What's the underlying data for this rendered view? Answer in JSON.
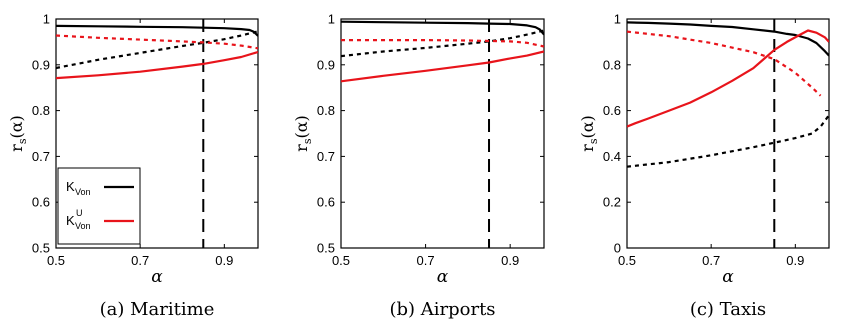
{
  "chart_data": [
    {
      "type": "line",
      "caption": "(a) Maritime",
      "xlabel": "α",
      "ylabel": "r_s(α)",
      "xlim": [
        0.5,
        0.98
      ],
      "ylim": [
        0.5,
        1.0
      ],
      "xticks": [
        "0.5",
        "0.7",
        "0.9"
      ],
      "xtick_values": [
        0.5,
        0.7,
        0.9
      ],
      "yticks": [
        "0.5",
        "0.6",
        "0.7",
        "0.8",
        "0.9",
        "1"
      ],
      "ytick_values": [
        0.5,
        0.6,
        0.7,
        0.8,
        0.9,
        1.0
      ],
      "vline": 0.85,
      "legend": {
        "location": "bottom-left",
        "entries": [
          {
            "label": "K",
            "sub": "Von",
            "sup": "",
            "color": "#000000"
          },
          {
            "label": "K",
            "sub": "Von",
            "sup": "U",
            "color": "#e8141b"
          }
        ]
      },
      "series": [
        {
          "color": "#000000",
          "dash": "solid",
          "x": [
            0.5,
            0.6,
            0.7,
            0.8,
            0.85,
            0.9,
            0.94,
            0.96,
            0.97,
            0.98
          ],
          "y": [
            0.985,
            0.984,
            0.983,
            0.982,
            0.981,
            0.98,
            0.978,
            0.976,
            0.972,
            0.963
          ]
        },
        {
          "color": "#e8141b",
          "dash": "solid",
          "x": [
            0.5,
            0.6,
            0.7,
            0.8,
            0.85,
            0.9,
            0.94,
            0.98
          ],
          "y": [
            0.871,
            0.877,
            0.885,
            0.896,
            0.902,
            0.91,
            0.917,
            0.928
          ]
        },
        {
          "color": "#000000",
          "dash": "dot",
          "x": [
            0.5,
            0.6,
            0.7,
            0.8,
            0.85,
            0.9,
            0.94,
            0.98
          ],
          "y": [
            0.893,
            0.911,
            0.926,
            0.941,
            0.948,
            0.956,
            0.964,
            0.973
          ]
        },
        {
          "color": "#e8141b",
          "dash": "dot",
          "x": [
            0.5,
            0.6,
            0.7,
            0.8,
            0.85,
            0.9,
            0.94,
            0.98
          ],
          "y": [
            0.964,
            0.959,
            0.955,
            0.951,
            0.949,
            0.946,
            0.942,
            0.936
          ]
        }
      ]
    },
    {
      "type": "line",
      "caption": "(b) Airports",
      "xlabel": "α",
      "ylabel": "r_s(α)",
      "xlim": [
        0.5,
        0.98
      ],
      "ylim": [
        0.5,
        1.0
      ],
      "xticks": [
        "0.5",
        "0.7",
        "0.9"
      ],
      "xtick_values": [
        0.5,
        0.7,
        0.9
      ],
      "yticks": [
        "0.5",
        "0.6",
        "0.7",
        "0.8",
        "0.9",
        "1"
      ],
      "ytick_values": [
        0.5,
        0.6,
        0.7,
        0.8,
        0.9,
        1.0
      ],
      "vline": 0.85,
      "series": [
        {
          "color": "#000000",
          "dash": "solid",
          "x": [
            0.5,
            0.6,
            0.7,
            0.8,
            0.85,
            0.9,
            0.94,
            0.96,
            0.97,
            0.98
          ],
          "y": [
            0.994,
            0.993,
            0.992,
            0.991,
            0.99,
            0.989,
            0.986,
            0.982,
            0.977,
            0.966
          ]
        },
        {
          "color": "#e8141b",
          "dash": "solid",
          "x": [
            0.5,
            0.6,
            0.7,
            0.8,
            0.85,
            0.9,
            0.94,
            0.98
          ],
          "y": [
            0.864,
            0.876,
            0.887,
            0.899,
            0.905,
            0.914,
            0.92,
            0.929
          ]
        },
        {
          "color": "#000000",
          "dash": "dot",
          "x": [
            0.5,
            0.6,
            0.7,
            0.8,
            0.85,
            0.9,
            0.94,
            0.98
          ],
          "y": [
            0.919,
            0.929,
            0.937,
            0.946,
            0.951,
            0.958,
            0.966,
            0.975
          ]
        },
        {
          "color": "#e8141b",
          "dash": "dot",
          "x": [
            0.5,
            0.6,
            0.7,
            0.8,
            0.85,
            0.9,
            0.94,
            0.98
          ],
          "y": [
            0.954,
            0.954,
            0.954,
            0.953,
            0.952,
            0.951,
            0.948,
            0.94
          ]
        }
      ]
    },
    {
      "type": "line",
      "caption": "(c) Taxis",
      "xlabel": "α",
      "ylabel": "r_s(α)",
      "xlim": [
        0.5,
        0.98
      ],
      "ylim": [
        0.0,
        1.0
      ],
      "xticks": [
        "0.5",
        "0.7",
        "0.9"
      ],
      "xtick_values": [
        0.5,
        0.7,
        0.9
      ],
      "yticks": [
        "0",
        "0.2",
        "0.4",
        "0.6",
        "0.8",
        "1"
      ],
      "ytick_values": [
        0.0,
        0.2,
        0.4,
        0.6,
        0.8,
        1.0
      ],
      "vline": 0.85,
      "series": [
        {
          "color": "#000000",
          "dash": "solid",
          "x": [
            0.5,
            0.55,
            0.6,
            0.65,
            0.7,
            0.75,
            0.8,
            0.85,
            0.88,
            0.9,
            0.93,
            0.95,
            0.97,
            0.98
          ],
          "y": [
            0.985,
            0.983,
            0.98,
            0.976,
            0.97,
            0.965,
            0.955,
            0.945,
            0.935,
            0.93,
            0.915,
            0.895,
            0.86,
            0.84
          ]
        },
        {
          "color": "#e8141b",
          "dash": "solid",
          "x": [
            0.5,
            0.52,
            0.55,
            0.6,
            0.65,
            0.7,
            0.75,
            0.8,
            0.85,
            0.88,
            0.91,
            0.93,
            0.95,
            0.97,
            0.98
          ],
          "y": [
            0.53,
            0.545,
            0.565,
            0.6,
            0.635,
            0.68,
            0.73,
            0.785,
            0.865,
            0.9,
            0.93,
            0.95,
            0.94,
            0.92,
            0.9
          ]
        },
        {
          "color": "#000000",
          "dash": "dot",
          "x": [
            0.5,
            0.6,
            0.7,
            0.8,
            0.85,
            0.9,
            0.94,
            0.96,
            0.98
          ],
          "y": [
            0.355,
            0.375,
            0.405,
            0.44,
            0.46,
            0.48,
            0.5,
            0.53,
            0.58
          ]
        },
        {
          "color": "#e8141b",
          "dash": "dot",
          "x": [
            0.5,
            0.6,
            0.7,
            0.8,
            0.85,
            0.9,
            0.94,
            0.96
          ],
          "y": [
            0.945,
            0.925,
            0.895,
            0.855,
            0.825,
            0.765,
            0.7,
            0.665
          ]
        }
      ]
    }
  ]
}
